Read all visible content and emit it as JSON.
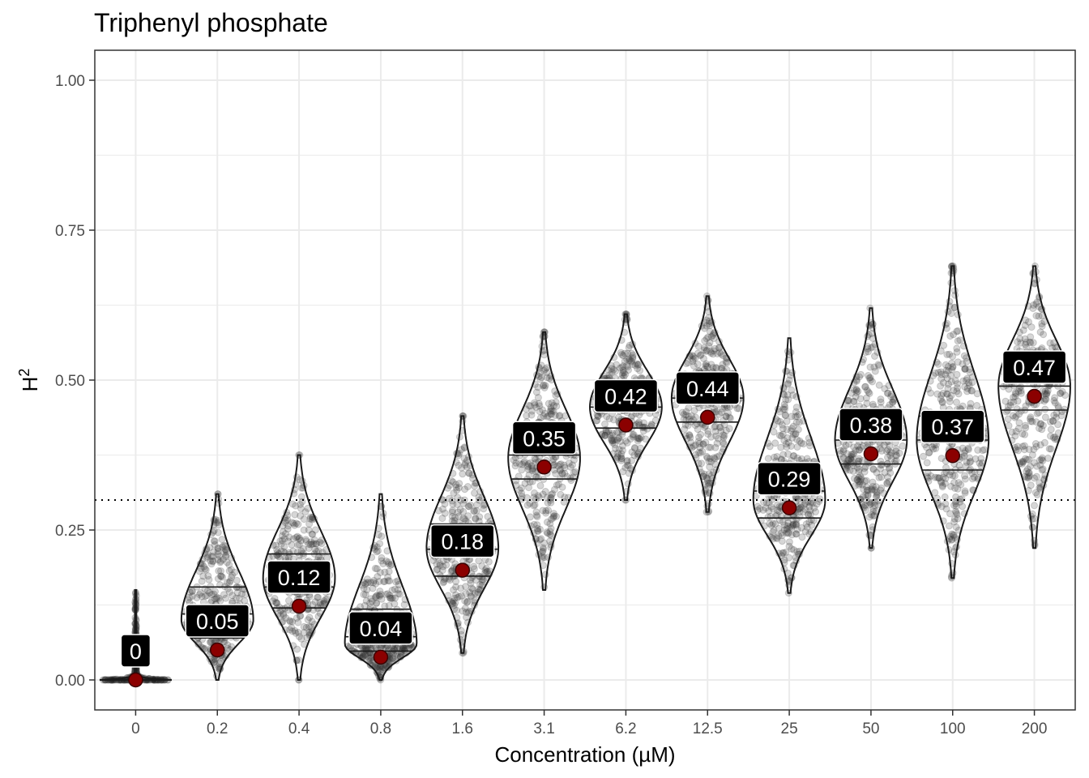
{
  "chart_data": {
    "type": "violin",
    "title": "Triphenyl phosphate",
    "xlabel": "Concentration (µM)",
    "ylabel": "H",
    "ylabel_superscript": "2",
    "categories": [
      "0",
      "0.2",
      "0.4",
      "0.8",
      "1.6",
      "3.1",
      "6.2",
      "12.5",
      "25",
      "50",
      "100",
      "200"
    ],
    "ylim": [
      -0.05,
      1.05
    ],
    "yticks": [
      "0.00",
      "0.25",
      "0.50",
      "0.75",
      "1.00"
    ],
    "ytick_values": [
      0,
      0.25,
      0.5,
      0.75,
      1.0
    ],
    "reference_line": 0.3,
    "grid": true,
    "mean_values": [
      0.0,
      0.05,
      0.123,
      0.038,
      0.183,
      0.355,
      0.425,
      0.438,
      0.287,
      0.377,
      0.374,
      0.473
    ],
    "labels": [
      "0",
      "0.05",
      "0.12",
      "0.04",
      "0.18",
      "0.35",
      "0.42",
      "0.44",
      "0.29",
      "0.38",
      "0.37",
      "0.47"
    ],
    "distributions": [
      {
        "min": 0.0,
        "max": 0.15,
        "peak": 0.0,
        "q1": 0.0,
        "median": 0.0,
        "q3": 0.0
      },
      {
        "min": 0.0,
        "max": 0.31,
        "peak": 0.1,
        "q1": 0.07,
        "median": 0.11,
        "q3": 0.155
      },
      {
        "min": 0.0,
        "max": 0.375,
        "peak": 0.17,
        "q1": 0.12,
        "median": 0.155,
        "q3": 0.21
      },
      {
        "min": 0.0,
        "max": 0.31,
        "peak": 0.06,
        "q1": 0.048,
        "median": 0.072,
        "q3": 0.118
      },
      {
        "min": 0.045,
        "max": 0.44,
        "peak": 0.22,
        "q1": 0.173,
        "median": 0.218,
        "q3": 0.26
      },
      {
        "min": 0.15,
        "max": 0.58,
        "peak": 0.37,
        "q1": 0.335,
        "median": 0.375,
        "q3": 0.415
      },
      {
        "min": 0.3,
        "max": 0.61,
        "peak": 0.455,
        "q1": 0.42,
        "median": 0.455,
        "q3": 0.49
      },
      {
        "min": 0.28,
        "max": 0.64,
        "peak": 0.47,
        "q1": 0.43,
        "median": 0.47,
        "q3": 0.505
      },
      {
        "min": 0.145,
        "max": 0.57,
        "peak": 0.3,
        "q1": 0.27,
        "median": 0.315,
        "q3": 0.355
      },
      {
        "min": 0.22,
        "max": 0.62,
        "peak": 0.4,
        "q1": 0.36,
        "median": 0.4,
        "q3": 0.44
      },
      {
        "min": 0.17,
        "max": 0.69,
        "peak": 0.4,
        "q1": 0.35,
        "median": 0.4,
        "q3": 0.44
      },
      {
        "min": 0.22,
        "max": 0.69,
        "peak": 0.49,
        "q1": 0.45,
        "median": 0.49,
        "q3": 0.53
      }
    ],
    "colors": {
      "violin_stroke": "#1a1a1a",
      "point_fill": "#8b0000",
      "label_bg": "#000000",
      "label_text": "#ffffff",
      "grid": "#ebebeb",
      "panel_border": "#333333"
    }
  }
}
